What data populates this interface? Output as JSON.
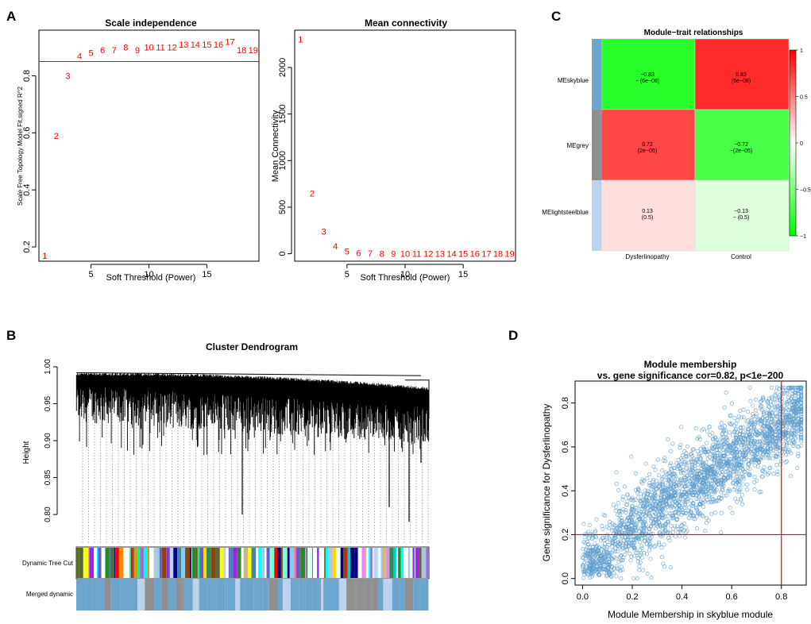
{
  "panels": {
    "A": {
      "letter": "A",
      "scale_independence": {
        "type": "scatter",
        "title": "Scale independence",
        "xlabel": "Soft Threshold (Power)",
        "ylabel": "Scale Free Topology Model Fit,signed R^2",
        "xlim": [
          0.5,
          19.5
        ],
        "ylim": [
          0.15,
          0.96
        ],
        "xticks": [
          5,
          10,
          15
        ],
        "yticks": [
          0.2,
          0.4,
          0.6,
          0.8
        ],
        "hline": 0.85,
        "hline_color": "#ff0000",
        "point_color": "#ff0000",
        "x": [
          1,
          2,
          3,
          4,
          5,
          6,
          7,
          8,
          9,
          10,
          11,
          12,
          13,
          14,
          15,
          16,
          17,
          18,
          19
        ],
        "y": [
          0.17,
          0.59,
          0.8,
          0.87,
          0.88,
          0.89,
          0.89,
          0.9,
          0.89,
          0.9,
          0.9,
          0.9,
          0.91,
          0.91,
          0.91,
          0.91,
          0.92,
          0.89,
          0.89
        ],
        "point_labels": [
          "1",
          "2",
          "3",
          "4",
          "5",
          "6",
          "7",
          "8",
          "9",
          "10",
          "11",
          "12",
          "13",
          "14",
          "15",
          "16",
          "17",
          "18",
          "19"
        ]
      },
      "mean_connectivity": {
        "type": "scatter",
        "title": "Mean connectivity",
        "xlabel": "Soft Threshold (Power)",
        "ylabel": "Mean Connectivity",
        "xlim": [
          0.5,
          19.5
        ],
        "ylim": [
          -80,
          2400
        ],
        "xticks": [
          5,
          10,
          15
        ],
        "yticks": [
          0,
          500,
          1000,
          1500,
          2000
        ],
        "point_color": "#ff0000",
        "x": [
          1,
          2,
          3,
          4,
          5,
          6,
          7,
          8,
          9,
          10,
          11,
          12,
          13,
          14,
          15,
          16,
          17,
          18,
          19
        ],
        "y": [
          2300,
          650,
          240,
          80,
          25,
          10,
          5,
          2,
          1,
          1,
          0,
          0,
          0,
          0,
          0,
          0,
          0,
          0,
          0
        ],
        "point_labels": [
          "1",
          "2",
          "3",
          "4",
          "5",
          "6",
          "7",
          "8",
          "9",
          "10",
          "11",
          "12",
          "13",
          "14",
          "15",
          "16",
          "17",
          "18",
          "19"
        ]
      }
    },
    "B": {
      "letter": "B",
      "title": "Cluster Dendrogram",
      "ylabel": "Height",
      "ylim": [
        0.77,
        1.0
      ],
      "yticks": [
        0.8,
        0.85,
        0.9,
        0.95,
        1.0
      ],
      "ytick_labels": [
        "0.80",
        "0.85",
        "0.90",
        "0.95",
        "1.00"
      ],
      "row_labels": [
        "Dynamic Tree Cut",
        "Merged dynamic"
      ]
    },
    "C": {
      "letter": "C",
      "type": "heatmap",
      "title": "Module−trait relationships",
      "rows": [
        "MEskyblue",
        "MEgrey",
        "MElightsteelblue"
      ],
      "row_colors": [
        "#6ca6cd",
        "#8f8f8f",
        "#bcd2ee"
      ],
      "cols": [
        "Dysferlinopathy",
        "Control"
      ],
      "values": [
        [
          -0.83,
          0.83
        ],
        [
          0.72,
          -0.72
        ],
        [
          0.13,
          -0.13
        ]
      ],
      "cell_text": [
        [
          [
            "−0.83",
            "− (6e−08)"
          ],
          [
            "0.83",
            "(6e−08)"
          ]
        ],
        [
          [
            "0.72",
            "(2e−05)"
          ],
          [
            "−0.72",
            "−(2e−05)"
          ]
        ],
        [
          [
            "0.13",
            "(0.5)"
          ],
          [
            "−0.13",
            "− (0.5)"
          ]
        ]
      ],
      "legend_ticks": [
        "1",
        "0.5",
        "0",
        "−0.5",
        "−1"
      ],
      "legend_values": [
        1,
        0.5,
        0,
        -0.5,
        -1
      ],
      "color_low": "#00ff00",
      "color_mid": "#ffffff",
      "color_high": "#ff0000"
    },
    "D": {
      "letter": "D",
      "type": "scatter",
      "title_line1": "Module membership",
      "title_line2": "vs. gene significance cor=0.82, p<1e−200",
      "xlabel": "Module Membership in skyblue module",
      "ylabel": "Gene significance for  Dysferlinopathy",
      "xlim": [
        -0.03,
        0.9
      ],
      "ylim": [
        -0.03,
        0.9
      ],
      "xticks": [
        0.0,
        0.2,
        0.4,
        0.6,
        0.8
      ],
      "xtick_labels": [
        "0.0",
        "0.2",
        "0.4",
        "0.6",
        "0.8"
      ],
      "yticks": [
        0.0,
        0.2,
        0.4,
        0.6,
        0.8
      ],
      "ytick_labels": [
        "0.0",
        "0.2",
        "0.4",
        "0.6",
        "0.8"
      ],
      "vline": 0.8,
      "hline": 0.2,
      "line_color": "#ff0000",
      "point_color": "#5f9fcf",
      "correlation": 0.82,
      "p_value": "<1e−200"
    }
  }
}
